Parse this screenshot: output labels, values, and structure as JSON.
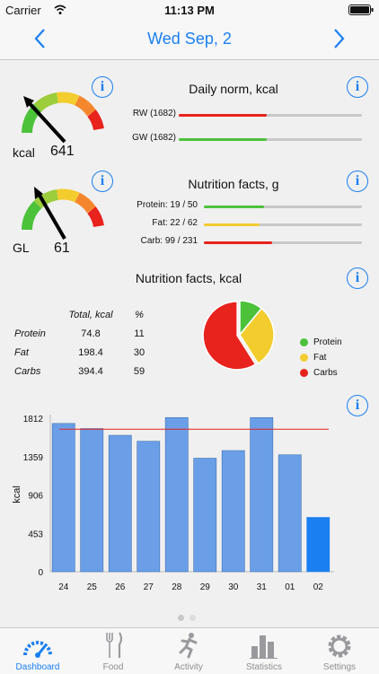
{
  "status": {
    "carrier": "Carrier",
    "time": "11:13 PM"
  },
  "nav": {
    "title": "Wed  Sep, 2"
  },
  "gauge_kcal": {
    "label": "kcal",
    "value": "641"
  },
  "gauge_gl": {
    "label": "GL",
    "value": "61"
  },
  "daily_norm": {
    "title": "Daily norm, kcal",
    "rows": [
      {
        "label": "RW (1682)",
        "fill": 0.48,
        "color": "#e8221d"
      },
      {
        "label": "GW (1682)",
        "fill": 0.48,
        "color": "#4cc23b"
      }
    ]
  },
  "nutrition_g": {
    "title": "Nutrition facts, g",
    "rows": [
      {
        "label": "Protein: 19 / 50",
        "fill": 0.38,
        "color": "#4cc23b"
      },
      {
        "label": "Fat: 22 / 62",
        "fill": 0.35,
        "color": "#f3cc2e"
      },
      {
        "label": "Carb: 99 / 231",
        "fill": 0.43,
        "color": "#e8221d"
      }
    ]
  },
  "nutrition_kcal": {
    "title": "Nutrition facts, kcal",
    "headers": [
      "",
      "Total, kcal",
      "%"
    ],
    "rows": [
      {
        "name": "Protein",
        "kcal": "74.8",
        "pct": "11"
      },
      {
        "name": "Fat",
        "kcal": "198.4",
        "pct": "30"
      },
      {
        "name": "Carbs",
        "kcal": "394.4",
        "pct": "59"
      }
    ],
    "legend": [
      {
        "name": "Protein",
        "color": "#4cc23b"
      },
      {
        "name": "Fat",
        "color": "#f3cc2e"
      },
      {
        "name": "Carbs",
        "color": "#e8221d"
      }
    ]
  },
  "chart_data": [
    {
      "type": "pie",
      "categories": [
        "Protein",
        "Fat",
        "Carbs"
      ],
      "values": [
        11,
        30,
        59
      ],
      "colors": [
        "#4cc23b",
        "#f3cc2e",
        "#e8221d"
      ],
      "legend": "right"
    },
    {
      "type": "bar",
      "categories": [
        "24",
        "25",
        "26",
        "27",
        "28",
        "29",
        "30",
        "31",
        "01",
        "02"
      ],
      "values": [
        1750,
        1690,
        1610,
        1540,
        1820,
        1340,
        1430,
        1820,
        1380,
        641
      ],
      "ylabel": "kcal",
      "yticks": [
        "0",
        "453",
        "906",
        "1359",
        "1812"
      ],
      "ylim": [
        0,
        1812
      ],
      "reference_line": 1682,
      "bar_color": "#6a9fe8",
      "highlight_color": "#1a7ff0",
      "highlight_index": 9,
      "ref_color": "#e8221d"
    }
  ],
  "tabs": [
    {
      "label": "Dashboard",
      "active": true
    },
    {
      "label": "Food",
      "active": false
    },
    {
      "label": "Activity",
      "active": false
    },
    {
      "label": "Statistics",
      "active": false
    },
    {
      "label": "Settings",
      "active": false
    }
  ]
}
